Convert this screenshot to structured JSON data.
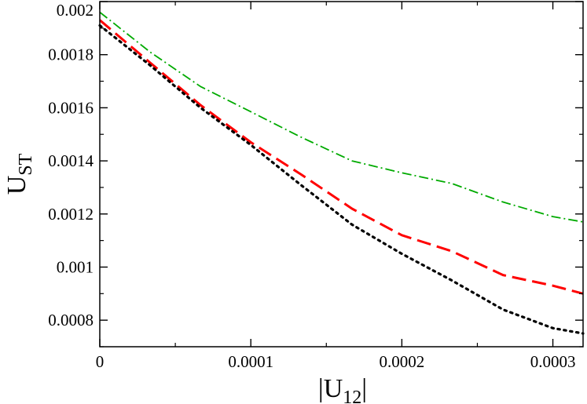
{
  "chart_data": {
    "type": "line",
    "title": "",
    "xlabel": "|U12|",
    "xlabel_parts": {
      "left_bar": "|",
      "main": "U",
      "sub": "12",
      "right_bar": "|"
    },
    "ylabel": "UST",
    "ylabel_parts": {
      "main": "U",
      "sub": "ST"
    },
    "xlim": [
      0,
      0.00032
    ],
    "ylim": [
      0.0007,
      0.002
    ],
    "x_ticks": [
      {
        "value": 0,
        "label": "0"
      },
      {
        "value": 0.0001,
        "label": "0.0001"
      },
      {
        "value": 0.0002,
        "label": "0.0002"
      },
      {
        "value": 0.0003,
        "label": "0.0003"
      }
    ],
    "y_ticks": [
      {
        "value": 0.0008,
        "label": "0.0008"
      },
      {
        "value": 0.001,
        "label": "0.001"
      },
      {
        "value": 0.0012,
        "label": "0.0012"
      },
      {
        "value": 0.0014,
        "label": "0.0014"
      },
      {
        "value": 0.0016,
        "label": "0.0016"
      },
      {
        "value": 0.0018,
        "label": "0.0018"
      },
      {
        "value": 0.002,
        "label": "0.002"
      }
    ],
    "x_minor_step": 5e-05,
    "y_minor_step": 0.0001,
    "grid": false,
    "legend": "none",
    "series": [
      {
        "color": "#00aa00",
        "dash": "dashdot",
        "x": [
          0,
          3.33e-05,
          6.67e-05,
          0.0001,
          0.000133,
          0.000167,
          0.0002,
          0.000233,
          0.000267,
          0.0003,
          0.00032
        ],
        "y": [
          0.00196,
          0.00181,
          0.00168,
          0.001585,
          0.00149,
          0.0014,
          0.001355,
          0.001315,
          0.001245,
          0.00119,
          0.00117
        ]
      },
      {
        "color": "#ff0000",
        "dash": "longdash",
        "x": [
          0,
          3.33e-05,
          6.67e-05,
          0.0001,
          0.000133,
          0.000167,
          0.0002,
          0.000233,
          0.000267,
          0.0003,
          0.00032
        ],
        "y": [
          0.00193,
          0.00177,
          0.00161,
          0.00147,
          0.00135,
          0.00122,
          0.00112,
          0.00106,
          0.00097,
          0.00093,
          0.0009
        ]
      },
      {
        "color": "#000000",
        "dash": "dotted",
        "x": [
          0,
          3.33e-05,
          6.67e-05,
          0.0001,
          0.000133,
          0.000167,
          0.0002,
          0.000233,
          0.000267,
          0.0003,
          0.00032
        ],
        "y": [
          0.00191,
          0.00176,
          0.0016,
          0.00146,
          0.00131,
          0.00116,
          0.00105,
          0.00095,
          0.00084,
          0.00077,
          0.00075
        ]
      }
    ]
  }
}
